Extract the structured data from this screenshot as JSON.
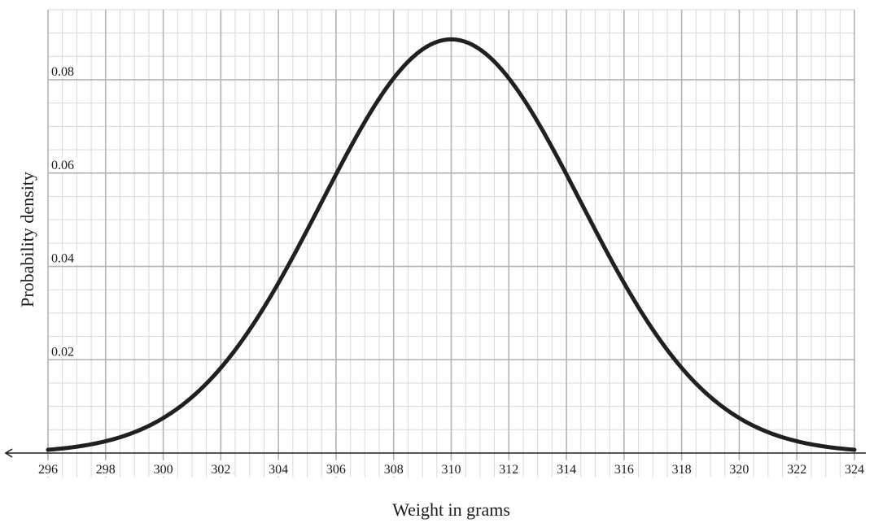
{
  "chart_data": {
    "type": "line",
    "title": "",
    "xlabel": "Weight in grams",
    "ylabel": "Probability density",
    "xlim": [
      296,
      324
    ],
    "ylim": [
      0,
      0.095
    ],
    "x_ticks": [
      296,
      298,
      300,
      302,
      304,
      306,
      308,
      310,
      312,
      314,
      316,
      318,
      320,
      322,
      324
    ],
    "x_minor_step": 0.5,
    "y_ticks": [
      0.02,
      0.04,
      0.06,
      0.08
    ],
    "y_tick_labels": [
      "0.02",
      "0.04",
      "0.06",
      "0.08"
    ],
    "y_minor_step": 0.005,
    "grid": true,
    "series": [
      {
        "distribution": "normal",
        "mean": 310,
        "sd": 4.5,
        "x": [
          296,
          297,
          298,
          299,
          300,
          301,
          302,
          303,
          304,
          305,
          306,
          307,
          308,
          309,
          310,
          311,
          312,
          313,
          314,
          315,
          316,
          317,
          318,
          319,
          320,
          321,
          322,
          323,
          324
        ],
        "values": [
          0.0007,
          0.0014,
          0.0026,
          0.0044,
          0.0075,
          0.012,
          0.0183,
          0.0265,
          0.0365,
          0.0478,
          0.0595,
          0.0708,
          0.0801,
          0.0864,
          0.0887,
          0.0864,
          0.0801,
          0.0708,
          0.0595,
          0.0478,
          0.0365,
          0.0265,
          0.0183,
          0.012,
          0.0075,
          0.0044,
          0.0026,
          0.0014,
          0.0007
        ]
      }
    ],
    "colors": {
      "curve": "#231f20",
      "grid_major": "#b3b3b3",
      "grid_minor": "#d9d9d9",
      "axis": "#231f20"
    }
  }
}
